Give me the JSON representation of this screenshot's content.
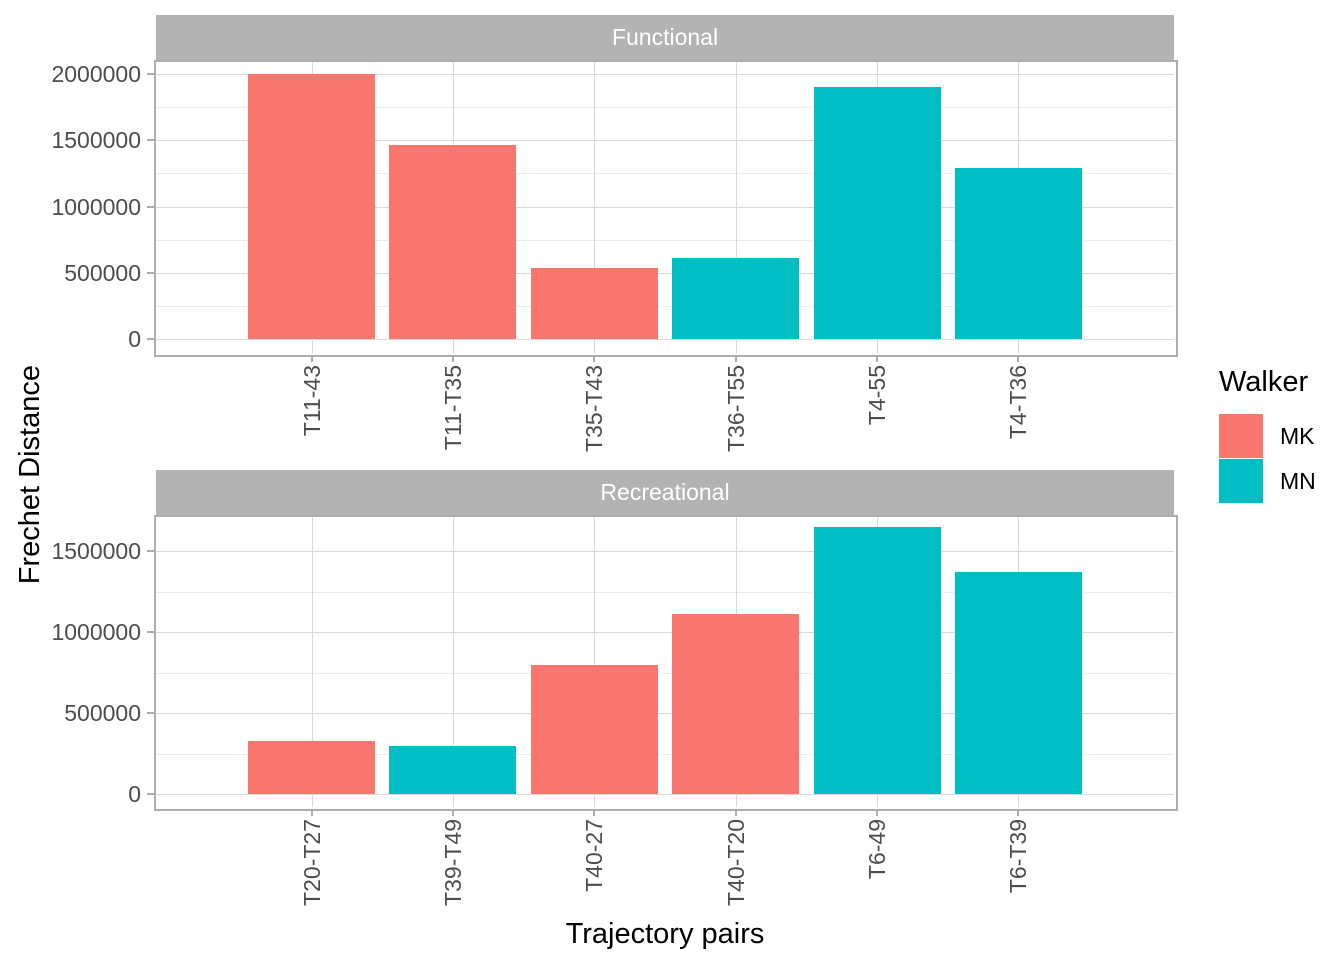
{
  "colors": {
    "mk": "#F8766D",
    "mn": "#00BFC4",
    "strip_bg": "#B3B3B3",
    "strip_text": "#FFFFFF",
    "panel_bg": "#FFFFFF",
    "panel_border": "#ADADAD",
    "grid_major": "#D9D9D9",
    "grid_minor": "#ECECEC",
    "tick_mark": "#ADADAD",
    "tick_label": "#4D4D4D",
    "axis_title": "#000000"
  },
  "y_axis": {
    "title": "Frechet Distance"
  },
  "x_axis": {
    "title": "Trajectory pairs"
  },
  "legend": {
    "title": "Walker",
    "items": [
      {
        "label": "MK",
        "color_key": "mk"
      },
      {
        "label": "MN",
        "color_key": "mn"
      }
    ]
  },
  "chart_data": [
    {
      "type": "bar",
      "title": "Functional",
      "categories": [
        "T11-43",
        "T11-T35",
        "T35-T43",
        "T36-T55",
        "T4-55",
        "T4-T36"
      ],
      "values": [
        2000000,
        1465000,
        535000,
        610000,
        1900000,
        1290000
      ],
      "groups": [
        "MK",
        "MK",
        "MK",
        "MN",
        "MN",
        "MN"
      ],
      "y_ticks": [
        0,
        500000,
        1000000,
        1500000,
        2000000
      ],
      "minor_step": 250000,
      "ylim": [
        -105000,
        2105000
      ],
      "xlabel": "Trajectory pairs",
      "ylabel": "Frechet Distance",
      "legend_title": "Walker",
      "grid": "major+minor",
      "legend_position": "right"
    },
    {
      "type": "bar",
      "title": "Recreational",
      "categories": [
        "T20-T27",
        "T39-T49",
        "T40-27",
        "T40-T20",
        "T6-49",
        "T6-T39"
      ],
      "values": [
        330000,
        295000,
        795000,
        1110000,
        1650000,
        1370000
      ],
      "groups": [
        "MK",
        "MN",
        "MK",
        "MK",
        "MN",
        "MN"
      ],
      "y_ticks": [
        0,
        500000,
        1000000,
        1500000
      ],
      "minor_step": 250000,
      "ylim": [
        -80000,
        1725000
      ],
      "xlabel": "Trajectory pairs",
      "ylabel": "Frechet Distance",
      "legend_title": "Walker",
      "grid": "major+minor",
      "legend_position": "right"
    }
  ]
}
